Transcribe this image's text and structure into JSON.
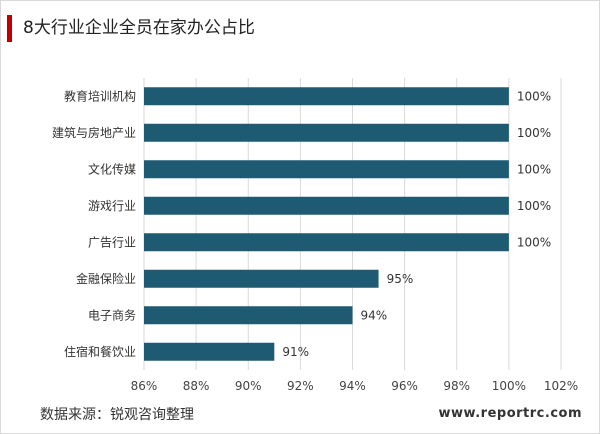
{
  "title": "8大行业企业全员在家办公占比",
  "footer": {
    "source": "数据来源：锐观咨询整理",
    "website": "www.reportrc.com"
  },
  "colors": {
    "bar": "#1f5a73",
    "accent": "#c00000",
    "gridline": "#d9d9d9"
  },
  "chart_data": {
    "type": "bar",
    "orientation": "horizontal",
    "categories": [
      "教育培训机构",
      "建筑与房地产业",
      "文化传媒",
      "游戏行业",
      "广告行业",
      "金融保险业",
      "电子商务",
      "住宿和餐饮业"
    ],
    "values": [
      100,
      100,
      100,
      100,
      100,
      95,
      94,
      91
    ],
    "value_labels": [
      "100%",
      "100%",
      "100%",
      "100%",
      "100%",
      "95%",
      "94%",
      "91%"
    ],
    "xlim": [
      86,
      102
    ],
    "xticks": [
      86,
      88,
      90,
      92,
      94,
      96,
      98,
      100,
      102
    ],
    "xtick_labels": [
      "86%",
      "88%",
      "90%",
      "92%",
      "94%",
      "96%",
      "98%",
      "100%",
      "102%"
    ],
    "grid": "vertical",
    "legend": "none"
  }
}
